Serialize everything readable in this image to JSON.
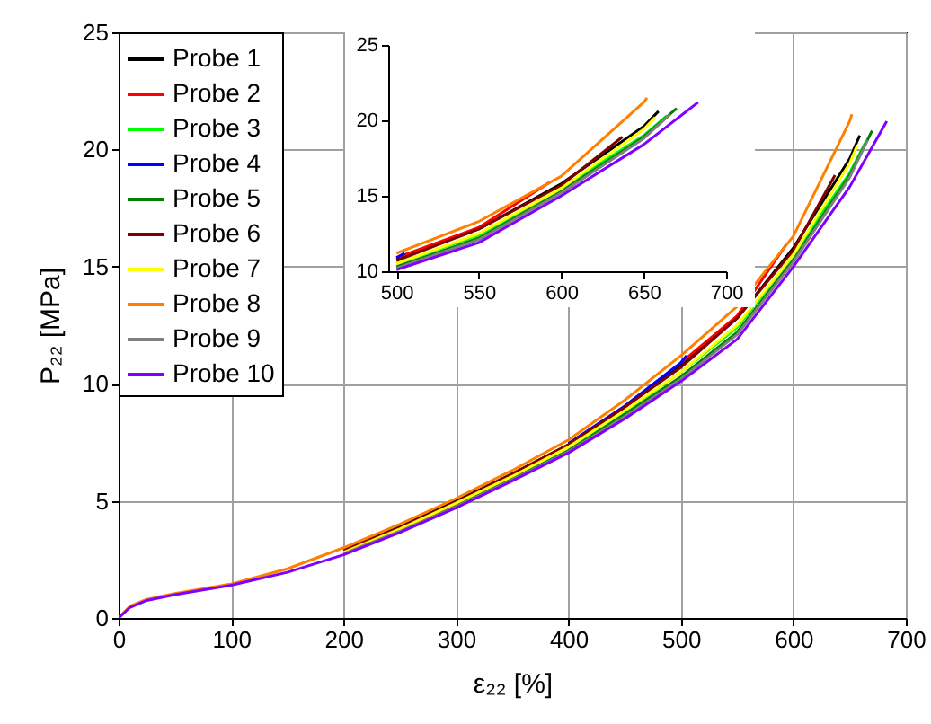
{
  "chart_data": [
    {
      "type": "line",
      "xlabel": "ε₂₂ [%]",
      "ylabel": "P₂₂ [MPa]",
      "xlim": [
        0,
        700
      ],
      "ylim": [
        0,
        25
      ],
      "xticks": [
        0,
        100,
        200,
        300,
        400,
        500,
        600,
        700
      ],
      "yticks": [
        0,
        5,
        10,
        15,
        20,
        25
      ],
      "grid": true,
      "legend": "top left",
      "series": [
        {
          "name": "Probe 1",
          "color": "#000000",
          "x": [
            200,
            250,
            300,
            350,
            400,
            450,
            500,
            550,
            600,
            650,
            659
          ],
          "values": [
            2.9,
            3.9,
            5.0,
            6.15,
            7.4,
            9.0,
            10.8,
            12.8,
            15.8,
            19.6,
            20.6
          ]
        },
        {
          "name": "Probe 2",
          "color": "#ff0000",
          "x": [
            500,
            550,
            593
          ],
          "values": [
            10.9,
            12.9,
            15.9
          ]
        },
        {
          "name": "Probe 3",
          "color": "#00ff00",
          "x": [
            400,
            450,
            500,
            550,
            600,
            650,
            664
          ],
          "values": [
            7.25,
            8.8,
            10.5,
            12.4,
            15.5,
            19.0,
            20.3
          ]
        },
        {
          "name": "Probe 4",
          "color": "#0000ff",
          "x": [
            400,
            450,
            500,
            505
          ],
          "values": [
            7.45,
            9.05,
            10.9,
            11.2
          ]
        },
        {
          "name": "Probe 5",
          "color": "#008000",
          "x": [
            200,
            250,
            300,
            350,
            400,
            450,
            500,
            550,
            600,
            650,
            670
          ],
          "values": [
            2.75,
            3.7,
            4.8,
            5.95,
            7.15,
            8.7,
            10.3,
            12.2,
            15.3,
            18.9,
            20.8
          ]
        },
        {
          "name": "Probe 6",
          "color": "#800000",
          "x": [
            200,
            250,
            300,
            350,
            400,
            450,
            500,
            550,
            600,
            637
          ],
          "values": [
            2.9,
            3.85,
            4.95,
            6.15,
            7.4,
            9.0,
            10.7,
            12.8,
            15.7,
            18.9
          ]
        },
        {
          "name": "Probe 7",
          "color": "#ffff00",
          "x": [
            200,
            250,
            300,
            350,
            400,
            450,
            500,
            550,
            600,
            650,
            657
          ],
          "values": [
            2.8,
            3.8,
            4.9,
            6.05,
            7.3,
            8.85,
            10.5,
            12.5,
            15.5,
            19.4,
            20.2
          ]
        },
        {
          "name": "Probe 8",
          "color": "#ff8000",
          "x": [
            0,
            10,
            25,
            50,
            100,
            150,
            200,
            250,
            300,
            350,
            400,
            450,
            500,
            550,
            600,
            650,
            652
          ],
          "values": [
            0,
            0.5,
            0.8,
            1.05,
            1.45,
            2.1,
            3.0,
            4.0,
            5.1,
            6.3,
            7.6,
            9.3,
            11.2,
            13.3,
            16.3,
            21.2,
            21.5
          ]
        },
        {
          "name": "Probe 9",
          "color": "#808080",
          "x": [
            200,
            250,
            300,
            350,
            400,
            450,
            500,
            550,
            600,
            650,
            666
          ],
          "values": [
            2.75,
            3.7,
            4.75,
            5.9,
            7.1,
            8.6,
            10.2,
            12.1,
            15.2,
            18.8,
            20.4
          ]
        },
        {
          "name": "Probe 10",
          "color": "#8000ff",
          "x": [
            0,
            10,
            25,
            50,
            100,
            150,
            200,
            250,
            300,
            350,
            400,
            450,
            500,
            550,
            600,
            650,
            683
          ],
          "values": [
            0,
            0.45,
            0.75,
            1.0,
            1.4,
            1.95,
            2.7,
            3.65,
            4.7,
            5.85,
            7.05,
            8.5,
            10.1,
            11.9,
            15.0,
            18.4,
            21.2
          ]
        }
      ]
    },
    {
      "type": "line",
      "xlim": [
        495,
        700
      ],
      "ylim": [
        10,
        25
      ],
      "xticks": [
        500,
        550,
        600,
        650,
        700
      ],
      "yticks": [
        10,
        15,
        20,
        25
      ],
      "series": [
        {
          "color": "#000000",
          "x": [
            500,
            550,
            600,
            650,
            659
          ],
          "values": [
            10.8,
            12.8,
            15.8,
            19.6,
            20.6
          ]
        },
        {
          "color": "#ff0000",
          "x": [
            500,
            550,
            593
          ],
          "values": [
            10.9,
            12.9,
            15.9
          ]
        },
        {
          "color": "#00ff00",
          "x": [
            500,
            550,
            600,
            650,
            664
          ],
          "values": [
            10.5,
            12.4,
            15.5,
            19.0,
            20.3
          ]
        },
        {
          "color": "#0000ff",
          "x": [
            500,
            505
          ],
          "values": [
            10.9,
            11.2
          ]
        },
        {
          "color": "#008000",
          "x": [
            500,
            550,
            600,
            650,
            670
          ],
          "values": [
            10.3,
            12.2,
            15.3,
            18.9,
            20.8
          ]
        },
        {
          "color": "#800000",
          "x": [
            500,
            550,
            600,
            637
          ],
          "values": [
            10.7,
            12.8,
            15.7,
            18.9
          ]
        },
        {
          "color": "#ffff00",
          "x": [
            500,
            550,
            600,
            650,
            657
          ],
          "values": [
            10.5,
            12.5,
            15.5,
            19.4,
            20.2
          ]
        },
        {
          "color": "#ff8000",
          "x": [
            500,
            550,
            600,
            650,
            652
          ],
          "values": [
            11.2,
            13.3,
            16.3,
            21.2,
            21.5
          ]
        },
        {
          "color": "#808080",
          "x": [
            500,
            550,
            600,
            650,
            666
          ],
          "values": [
            10.2,
            12.1,
            15.2,
            18.8,
            20.4
          ]
        },
        {
          "color": "#8000ff",
          "x": [
            500,
            550,
            600,
            650,
            683
          ],
          "values": [
            10.1,
            11.9,
            15.0,
            18.4,
            21.2
          ]
        }
      ]
    }
  ]
}
